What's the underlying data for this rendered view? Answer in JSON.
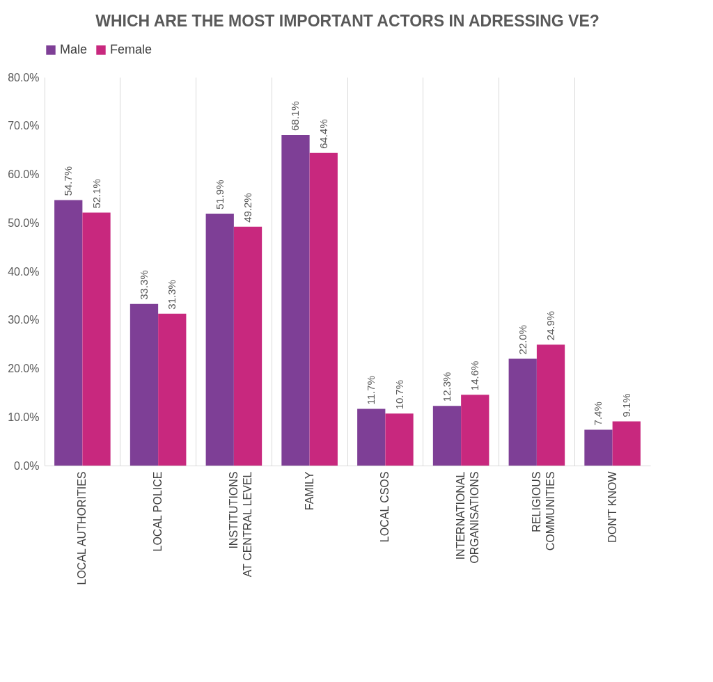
{
  "chart_data": {
    "type": "bar",
    "title": "WHICH ARE THE MOST IMPORTANT ACTORS IN ADRESSING VE?",
    "categories": [
      "LOCAL AUTHORITIES",
      "LOCAL POLICE",
      "INSTITUTIONS AT CENTRAL LEVEL",
      "FAMILY",
      "LOCAL CSOS",
      "INTERNATIONAL ORGANISATIONS",
      "RELIGIOUS COMMUNITIES",
      "DON'T KNOW"
    ],
    "series": [
      {
        "name": "Male",
        "color": "#7e3f96",
        "values": [
          54.7,
          33.3,
          51.9,
          68.1,
          11.7,
          12.3,
          22.0,
          7.4
        ],
        "value_labels": [
          "54.7%",
          "33.3%",
          "51.9%",
          "68.1%",
          "11.7%",
          "12.3%",
          "22.0%",
          "7.4%"
        ]
      },
      {
        "name": "Female",
        "color": "#c8287e",
        "values": [
          52.1,
          31.3,
          49.2,
          64.4,
          10.7,
          14.6,
          24.9,
          9.1
        ],
        "value_labels": [
          "52.1%",
          "31.3%",
          "49.2%",
          "64.4%",
          "10.7%",
          "14.6%",
          "24.9%",
          "9.1%"
        ]
      }
    ],
    "ylim": [
      0,
      80
    ],
    "yticks": [
      {
        "value": 0,
        "label": "0.0%"
      },
      {
        "value": 10,
        "label": "10.0%"
      },
      {
        "value": 20,
        "label": "20.0%"
      },
      {
        "value": 30,
        "label": "30.0%"
      },
      {
        "value": 40,
        "label": "40.0%"
      },
      {
        "value": 50,
        "label": "50.0%"
      },
      {
        "value": 60,
        "label": "60.0%"
      },
      {
        "value": 70,
        "label": "70.0%"
      },
      {
        "value": 80,
        "label": "80.0%"
      }
    ],
    "grid": "x",
    "legend": "top"
  }
}
